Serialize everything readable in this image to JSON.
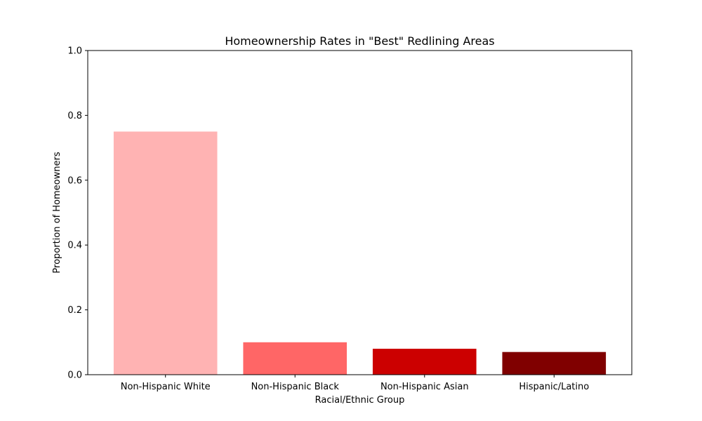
{
  "chart_data": {
    "type": "bar",
    "title": "Homeownership Rates in \"Best\" Redlining Areas",
    "xlabel": "Racial/Ethnic Group",
    "ylabel": "Proportion of Homeowners",
    "categories": [
      "Non-Hispanic White",
      "Non-Hispanic Black",
      "Non-Hispanic Asian",
      "Hispanic/Latino"
    ],
    "values": [
      0.75,
      0.1,
      0.08,
      0.07
    ],
    "colors": [
      "#ffb3b3",
      "#ff6666",
      "#cc0000",
      "#800000"
    ],
    "ylim": [
      0,
      1
    ],
    "yticks": [
      0.0,
      0.2,
      0.4,
      0.6,
      0.8,
      1.0
    ],
    "ytick_labels": [
      "0.0",
      "0.2",
      "0.4",
      "0.6",
      "0.8",
      "1.0"
    ],
    "grid": false,
    "legend": "none"
  }
}
